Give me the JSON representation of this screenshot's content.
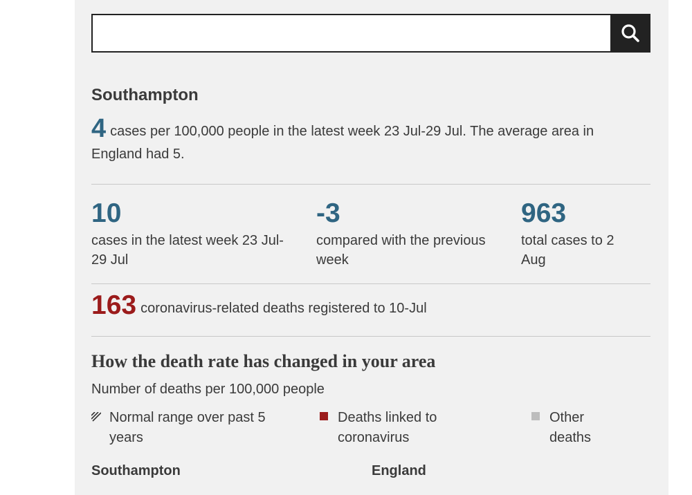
{
  "search": {
    "value": "",
    "placeholder": "",
    "icon": "search-icon"
  },
  "area": {
    "name": "Southampton"
  },
  "summary": {
    "rate": "4",
    "text": "cases per 100,000 people in the latest week 23 Jul-29 Jul. The average area in England had 5."
  },
  "stats": [
    {
      "value": "10",
      "label": "cases in the latest week 23 Jul-29 Jul"
    },
    {
      "value": "-3",
      "label": "compared with the previous week"
    },
    {
      "value": "963",
      "label": "total cases to 2 Aug"
    }
  ],
  "deaths": {
    "value": "163",
    "text": "coronavirus-related deaths registered to 10-Jul"
  },
  "chart": {
    "title": "How the death rate has changed in your area",
    "subtitle": "Number of deaths per 100,000 people",
    "legend": [
      {
        "label": "Normal range over past 5 years",
        "swatch": "hatch",
        "color": "#333333"
      },
      {
        "label": "Deaths linked to coronavirus",
        "swatch": "square",
        "color": "#9b1b1b"
      },
      {
        "label": "Other deaths",
        "swatch": "square",
        "color": "#bdbdbd"
      }
    ],
    "columns": [
      "Southampton",
      "England"
    ]
  },
  "colors": {
    "panel_bg": "#f1f1f1",
    "stat_blue": "#2f6582",
    "death_red": "#9b1b1b",
    "search_button_bg": "#222222"
  }
}
